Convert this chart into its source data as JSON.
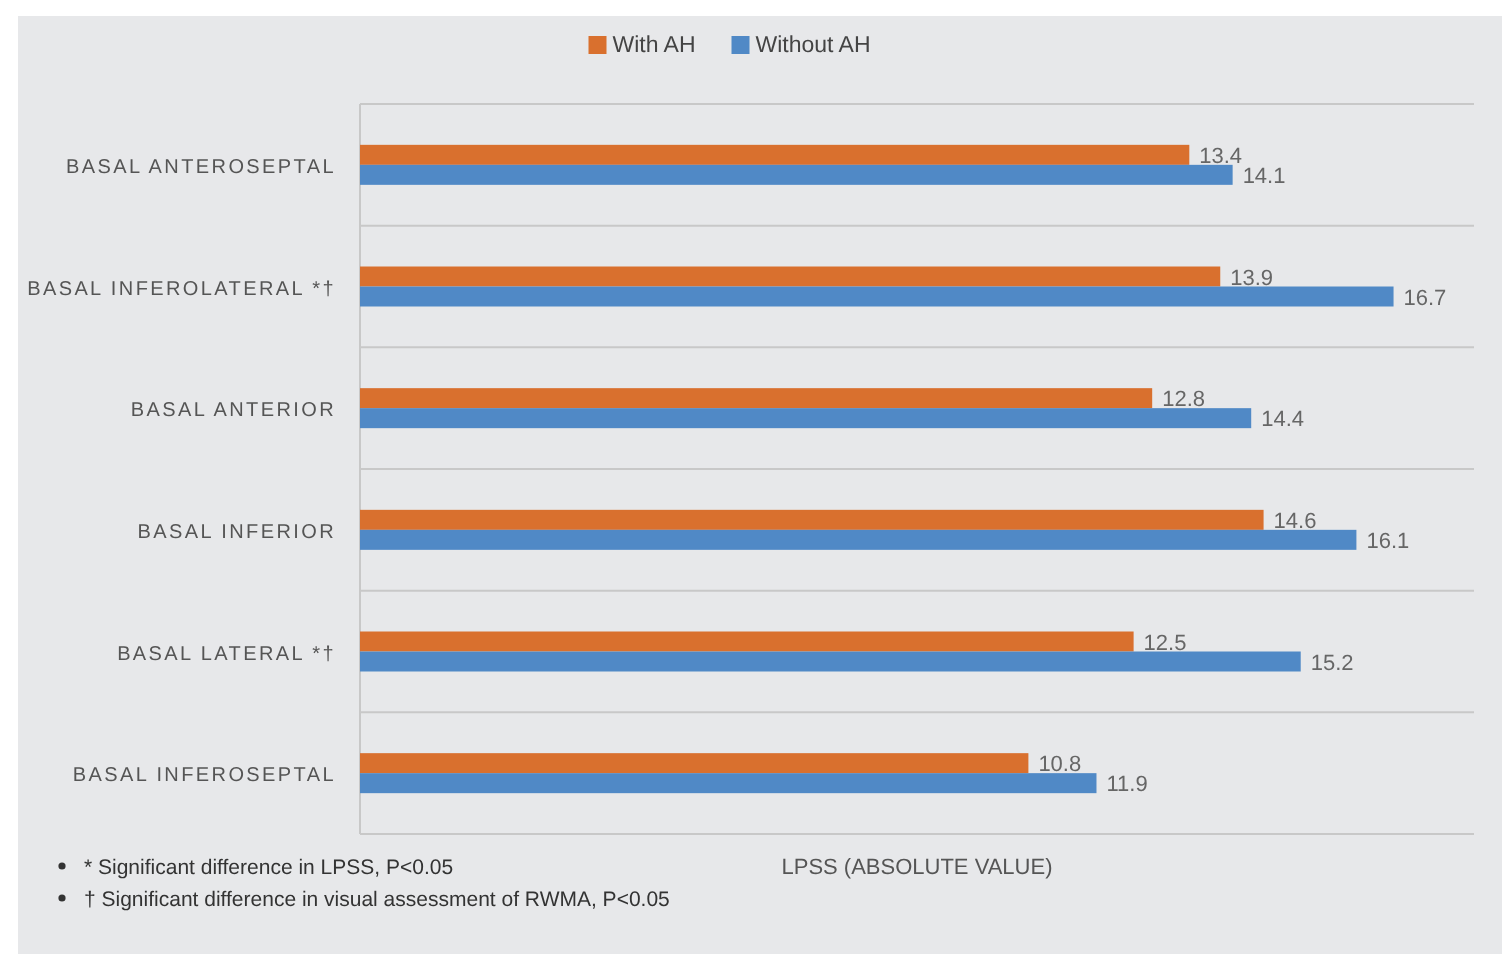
{
  "chart_data": {
    "type": "bar",
    "orientation": "horizontal",
    "xlabel": "LPSS (ABSOLUTE VALUE)",
    "categories": [
      "BASAL ANTEROSEPTAL",
      "BASAL INFEROLATERAL *†",
      "BASAL ANTERIOR",
      "BASAL INFERIOR",
      "BASAL LATERAL *†",
      "BASAL INFEROSEPTAL"
    ],
    "series": [
      {
        "name": "With AH",
        "color": "#d9702e",
        "values": [
          13.4,
          13.9,
          12.8,
          14.6,
          12.5,
          10.8
        ]
      },
      {
        "name": "Without AH",
        "color": "#5089c6",
        "values": [
          14.1,
          16.7,
          14.4,
          16.1,
          15.2,
          11.9
        ]
      }
    ],
    "xlim": [
      0,
      18
    ],
    "tick_labels": "y",
    "grid": "y",
    "legend": "top",
    "data_labels": true,
    "annotations": [
      "* Significant difference in LPSS, P<0.05",
      "† Significant difference in visual assessment of RWMA, P<0.05"
    ]
  }
}
